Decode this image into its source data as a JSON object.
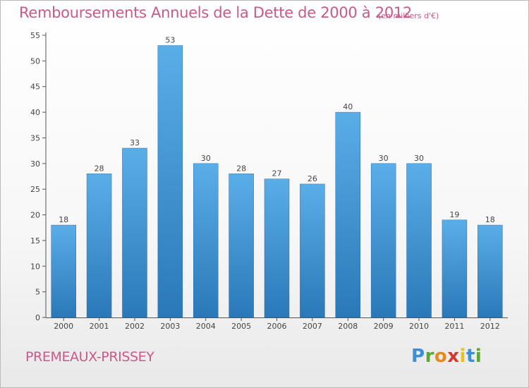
{
  "title": "Remboursements Annuels de la Dette de 2000 à 2012",
  "unit": "(en milliers d'€)",
  "commune": "PREMEAUX-PRISSEY",
  "logo": {
    "text": "Proxiti",
    "letter_colors": [
      "#3a8fd6",
      "#5aa832",
      "#e8891c",
      "#d6382c",
      "#e8c21c",
      "#3a8fd6",
      "#5aa832"
    ]
  },
  "colors": {
    "title": "#c85a8a",
    "bar_top": "#5aaee8",
    "bar_bottom": "#2a78b8"
  },
  "chart_data": {
    "type": "bar",
    "categories": [
      "2000",
      "2001",
      "2002",
      "2003",
      "2004",
      "2005",
      "2006",
      "2007",
      "2008",
      "2009",
      "2010",
      "2011",
      "2012"
    ],
    "values": [
      18,
      28,
      33,
      53,
      30,
      28,
      27,
      26,
      40,
      30,
      30,
      19,
      18
    ],
    "yticks": [
      0,
      5,
      10,
      15,
      20,
      25,
      30,
      35,
      40,
      45,
      50,
      55
    ],
    "ylim": [
      0,
      55
    ],
    "xlabel": "",
    "ylabel": "",
    "grid": false,
    "legend": "none"
  }
}
